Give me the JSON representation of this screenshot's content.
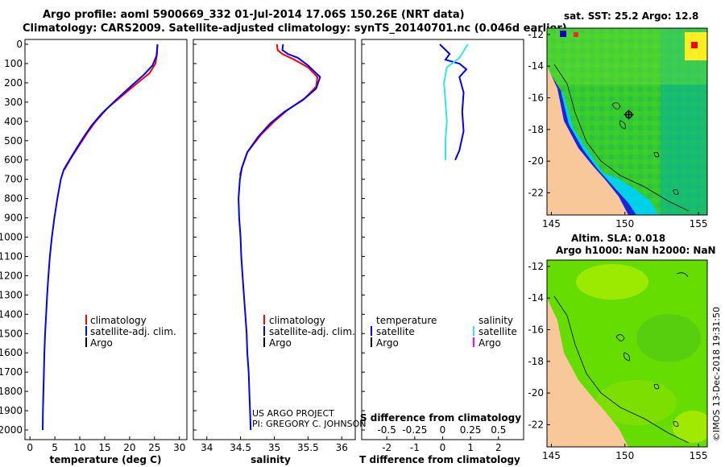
{
  "title": {
    "line1": "Argo profile: aoml 5900669_332 01-Jul-2014 17.06S 150.26E (NRT data)",
    "line2": "Climatology: CARS2009. Satellite-adjusted climatology: synTS_20140701.nc (0.046d earlier)"
  },
  "colors": {
    "climatology": "#ff0000",
    "satellite": "#0000ff",
    "argo": "#000000",
    "sat_cyan": "#33e6e6",
    "argo_magenta": "#ff00ff",
    "land": "#f8c89a"
  },
  "depth_axis": {
    "range": [
      0,
      2050
    ],
    "ticks": [
      0,
      100,
      200,
      300,
      400,
      500,
      600,
      700,
      800,
      900,
      1000,
      1100,
      1200,
      1300,
      1400,
      1500,
      1600,
      1700,
      1800,
      1900,
      2000
    ]
  },
  "chart_data": [
    {
      "type": "line",
      "name": "temperature-profile",
      "xlabel": "temperature (deg C)",
      "xlim": [
        -1,
        31.5
      ],
      "xticks": [
        0,
        5,
        10,
        15,
        20,
        25,
        30
      ],
      "ylim": [
        0,
        2050
      ],
      "y_reversed": true,
      "legend": [
        "climatology",
        "satellite-adj. clim.",
        "Argo"
      ],
      "series": [
        {
          "name": "climatology",
          "color": "#ff0000",
          "points": [
            [
              25.6,
              0
            ],
            [
              25.5,
              50
            ],
            [
              25.2,
              100
            ],
            [
              24.0,
              150
            ],
            [
              21.6,
              200
            ],
            [
              18.8,
              260
            ],
            [
              15.6,
              330
            ],
            [
              13.2,
              400
            ],
            [
              11.5,
              460
            ],
            [
              9.5,
              540
            ],
            [
              8.0,
              600
            ],
            [
              6.9,
              650
            ]
          ]
        },
        {
          "name": "satellite-adj. clim.",
          "color": "#0000ff",
          "points": [
            [
              25.6,
              0
            ],
            [
              25.4,
              60
            ],
            [
              24.6,
              110
            ],
            [
              22.8,
              160
            ],
            [
              20.6,
              210
            ],
            [
              17.2,
              290
            ],
            [
              14.4,
              360
            ],
            [
              12.4,
              420
            ],
            [
              10.8,
              480
            ],
            [
              9.1,
              550
            ],
            [
              7.7,
              610
            ],
            [
              6.8,
              650
            ],
            [
              6.2,
              700
            ],
            [
              5.5,
              800
            ],
            [
              4.9,
              900
            ],
            [
              4.4,
              1000
            ],
            [
              4.0,
              1100
            ],
            [
              3.7,
              1200
            ],
            [
              3.45,
              1300
            ],
            [
              3.25,
              1400
            ],
            [
              3.05,
              1500
            ],
            [
              2.9,
              1600
            ],
            [
              2.8,
              1700
            ],
            [
              2.7,
              1800
            ],
            [
              2.6,
              1900
            ],
            [
              2.55,
              2000
            ]
          ]
        }
      ]
    },
    {
      "type": "line",
      "name": "salinity-profile",
      "xlabel": "salinity",
      "xlim": [
        33.8,
        36.2
      ],
      "xticks": [
        34,
        34.5,
        35,
        35.5,
        36
      ],
      "tick_labels": [
        "34",
        "34.5",
        "35",
        "35.5",
        "36"
      ],
      "ylim": [
        0,
        2050
      ],
      "y_reversed": true,
      "legend": [
        "climatology",
        "satellite-adj. clim.",
        "Argo"
      ],
      "series": [
        {
          "name": "climatology",
          "color": "#ff0000",
          "points": [
            [
              35.04,
              0
            ],
            [
              35.05,
              30
            ],
            [
              35.12,
              50
            ],
            [
              35.3,
              80
            ],
            [
              35.5,
              120
            ],
            [
              35.64,
              170
            ],
            [
              35.62,
              220
            ],
            [
              35.45,
              280
            ],
            [
              35.2,
              340
            ],
            [
              35.0,
              400
            ],
            [
              34.8,
              470
            ],
            [
              34.6,
              560
            ],
            [
              34.52,
              640
            ],
            [
              34.49,
              680
            ]
          ]
        },
        {
          "name": "satellite-adj. clim.",
          "color": "#0000ff",
          "points": [
            [
              35.13,
              0
            ],
            [
              35.12,
              30
            ],
            [
              35.2,
              50
            ],
            [
              35.35,
              70
            ],
            [
              35.5,
              110
            ],
            [
              35.68,
              170
            ],
            [
              35.62,
              230
            ],
            [
              35.42,
              290
            ],
            [
              35.15,
              350
            ],
            [
              34.94,
              410
            ],
            [
              34.76,
              480
            ],
            [
              34.6,
              560
            ],
            [
              34.52,
              640
            ],
            [
              34.49,
              700
            ],
            [
              34.47,
              800
            ],
            [
              34.48,
              900
            ],
            [
              34.5,
              1000
            ],
            [
              34.51,
              1100
            ],
            [
              34.53,
              1200
            ],
            [
              34.55,
              1300
            ],
            [
              34.57,
              1400
            ],
            [
              34.59,
              1500
            ],
            [
              34.6,
              1600
            ],
            [
              34.62,
              1700
            ],
            [
              34.63,
              1800
            ],
            [
              34.64,
              1900
            ],
            [
              34.65,
              2000
            ]
          ]
        }
      ]
    },
    {
      "type": "line",
      "name": "difference-profile",
      "xlabel": "T difference from climatology",
      "xlabel_top": "S difference from climatology",
      "xlim": [
        -2.9,
        2.9
      ],
      "xticks": [
        -2,
        -1,
        0,
        1,
        2
      ],
      "s_tick_labels": [
        "-0.5",
        "-0.25",
        "0",
        "0.25",
        "0.5"
      ],
      "ylim": [
        0,
        2050
      ],
      "y_reversed": true,
      "legend_temperature": {
        "heading": "temperature",
        "items": [
          "satellite",
          "Argo"
        ]
      },
      "legend_salinity": {
        "heading": "salinity",
        "items": [
          "satellite",
          "Argo"
        ]
      },
      "series": [
        {
          "name": "temperature satellite",
          "color": "#0000ff",
          "points": [
            [
              -0.1,
              0
            ],
            [
              0.25,
              50
            ],
            [
              0.1,
              80
            ],
            [
              0.6,
              100
            ],
            [
              0.85,
              130
            ],
            [
              0.6,
              170
            ],
            [
              0.75,
              250
            ],
            [
              0.7,
              350
            ],
            [
              0.75,
              450
            ],
            [
              0.6,
              550
            ],
            [
              0.45,
              600
            ]
          ]
        },
        {
          "name": "salinity satellite",
          "color": "#33e6e6",
          "points": [
            [
              0.9,
              0
            ],
            [
              0.6,
              70
            ],
            [
              0.15,
              120
            ],
            [
              0.05,
              200
            ],
            [
              0.1,
              300
            ],
            [
              0.15,
              400
            ],
            [
              0.1,
              500
            ],
            [
              0.1,
              600
            ]
          ]
        }
      ]
    },
    {
      "type": "heatmap",
      "name": "sst-map",
      "title": "sat. SST: 25.2 Argo: 12.8",
      "xticks": [
        145,
        150,
        155
      ],
      "yticks": [
        -12,
        -14,
        -16,
        -18,
        -20,
        -22
      ],
      "xlim": [
        144.7,
        155.6
      ],
      "ylim": [
        -23.4,
        -11.6
      ]
    },
    {
      "type": "heatmap",
      "name": "sla-map",
      "title": "Altim. SLA: 0.018",
      "subtitle": "Argo h1000: NaN h2000: NaN",
      "xticks": [
        145,
        150,
        155
      ],
      "yticks": [
        -12,
        -14,
        -16,
        -18,
        -20,
        -22
      ],
      "xlim": [
        144.7,
        155.6
      ],
      "ylim": [
        -23.4,
        -11.6
      ]
    }
  ],
  "credits": {
    "project": "US ARGO PROJECT",
    "pi": "PI: GREGORY C. JOHNSON",
    "imos": "©IMOS 13-Dec-2018 19:31:50"
  },
  "argo_marker": {
    "lon": 150.26,
    "lat": -17.06
  }
}
